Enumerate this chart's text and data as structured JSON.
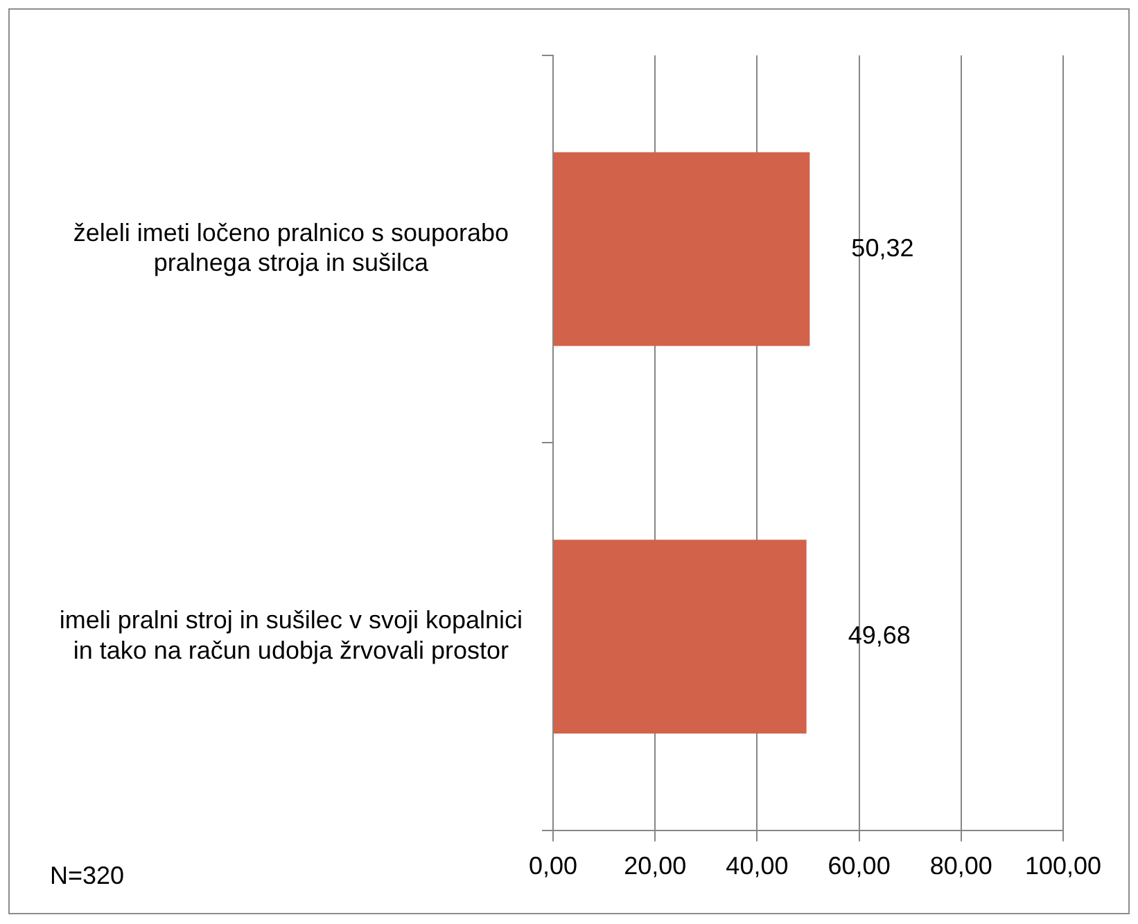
{
  "chart_data": {
    "type": "bar",
    "orientation": "horizontal",
    "categories": [
      "želeli imeti ločeno pralnico s souporabo pralnega stroja in sušilca",
      "imeli pralni stroj in sušilec v svoji kopalnici in tako na račun udobja žrvovali prostor"
    ],
    "values": [
      50.32,
      49.68
    ],
    "color": "#d2624a",
    "value_labels": [
      "50,32",
      "49,68"
    ],
    "xlim": [
      0,
      100
    ],
    "xticks": [
      {
        "value": 0,
        "label": "0,00"
      },
      {
        "value": 20,
        "label": "20,00"
      },
      {
        "value": 40,
        "label": "40,00"
      },
      {
        "value": 60,
        "label": "60,00"
      },
      {
        "value": 80,
        "label": "80,00"
      },
      {
        "value": 100,
        "label": "100,00"
      }
    ],
    "grid": "x",
    "legend": false,
    "annotations": [
      "N=320"
    ]
  }
}
